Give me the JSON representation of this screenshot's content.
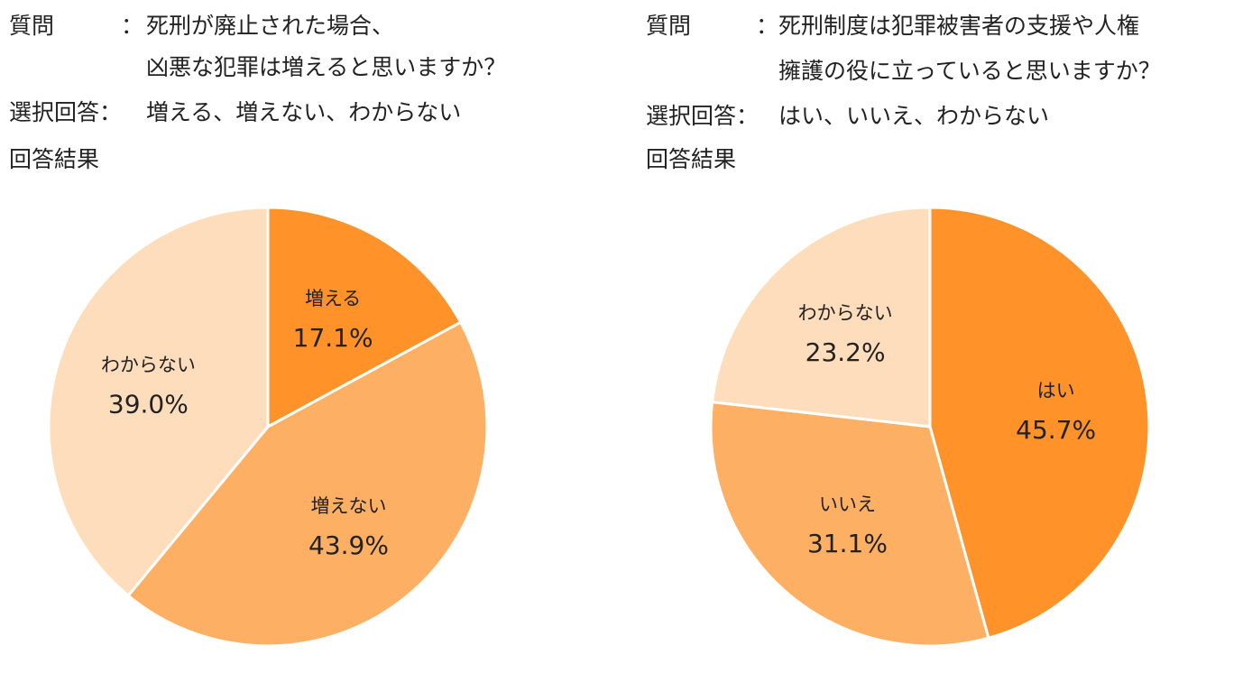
{
  "chart_data": [
    {
      "type": "pie",
      "question_label": "質問",
      "question_colon": "：",
      "question_lines": [
        "死刑が廃止された場合、",
        "凶悪な犯罪は増えると思いますか？"
      ],
      "choices_label": "選択回答：",
      "choices_text": "増える、増えない、わからない",
      "results_label": "回答結果",
      "slices": [
        {
          "label": "増える",
          "value": 17.1,
          "value_label": "17.1%",
          "color": "#FF9228"
        },
        {
          "label": "増えない",
          "value": 43.9,
          "value_label": "43.9%",
          "color": "#FDB063"
        },
        {
          "label": "わからない",
          "value": 39.0,
          "value_label": "39.0%",
          "color": "#FEDDBC"
        }
      ]
    },
    {
      "type": "pie",
      "question_label": "質問",
      "question_colon": "：",
      "question_lines": [
        "死刑制度は犯罪被害者の支援や人権",
        "擁護の役に立っていると思いますか？"
      ],
      "choices_label": "選択回答：",
      "choices_text": "はい、いいえ、わからない",
      "results_label": "回答結果",
      "slices": [
        {
          "label": "はい",
          "value": 45.7,
          "value_label": "45.7%",
          "color": "#FF9228"
        },
        {
          "label": "いいえ",
          "value": 31.1,
          "value_label": "31.1%",
          "color": "#FDB063"
        },
        {
          "label": "わからない",
          "value": 23.2,
          "value_label": "23.2%",
          "color": "#FEDDBC"
        }
      ]
    }
  ]
}
